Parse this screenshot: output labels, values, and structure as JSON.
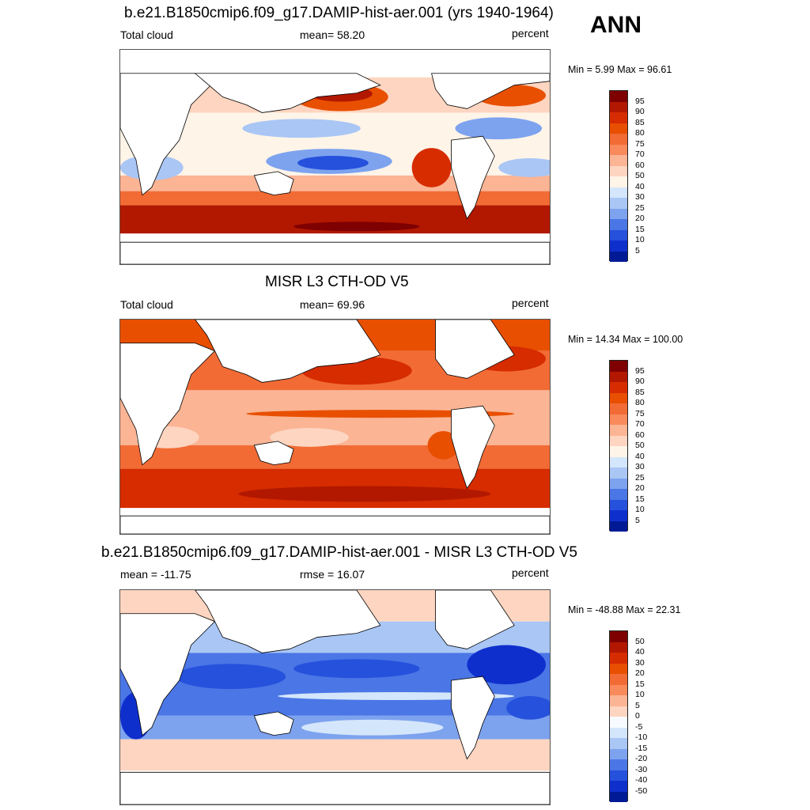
{
  "season": "ANN",
  "panels": [
    {
      "title": "b.e21.B1850cmip6.f09_g17.DAMIP-hist-aer.001 (yrs 1940-1964)",
      "left_label": "Total cloud",
      "center_label": "mean=  58.20",
      "right_label": "percent",
      "minmax": "Min =   5.99 Max =  96.61",
      "colorbar_labels": [
        "95",
        "90",
        "85",
        "80",
        "75",
        "70",
        "60",
        "50",
        "40",
        "30",
        "25",
        "20",
        "15",
        "10",
        "5"
      ],
      "colorbar_colors": [
        "#7f0000",
        "#b21800",
        "#d62c00",
        "#e84f00",
        "#f26b35",
        "#f88a5c",
        "#fbb494",
        "#fdd5c0",
        "#fff4e8",
        "#d4e6fb",
        "#a9c6f5",
        "#7da3ef",
        "#4a76e6",
        "#2551dc",
        "#0f2fcd",
        "#001a96"
      ]
    },
    {
      "title": "MISR L3 CTH-OD V5",
      "left_label": "Total cloud",
      "center_label": "mean=  69.96",
      "right_label": "percent",
      "minmax": "Min =  14.34 Max = 100.00",
      "colorbar_labels": [
        "95",
        "90",
        "85",
        "80",
        "75",
        "70",
        "60",
        "50",
        "40",
        "30",
        "25",
        "20",
        "15",
        "10",
        "5"
      ],
      "colorbar_colors": [
        "#7f0000",
        "#b21800",
        "#d62c00",
        "#e84f00",
        "#f26b35",
        "#f88a5c",
        "#fbb494",
        "#fdd5c0",
        "#fff4e8",
        "#d4e6fb",
        "#a9c6f5",
        "#7da3ef",
        "#4a76e6",
        "#2551dc",
        "#0f2fcd",
        "#001a96"
      ]
    },
    {
      "title": "b.e21.B1850cmip6.f09_g17.DAMIP-hist-aer.001 - MISR L3 CTH-OD V5",
      "left_label": "mean = -11.75",
      "center_label": "rmse =  16.07",
      "right_label": "percent",
      "minmax": "Min = -48.88 Max =  22.31",
      "colorbar_labels": [
        "50",
        "40",
        "30",
        "20",
        "15",
        "10",
        "5",
        "0",
        "-5",
        "-10",
        "-15",
        "-20",
        "-30",
        "-40",
        "-50"
      ],
      "colorbar_colors": [
        "#7f0000",
        "#b21800",
        "#d62c00",
        "#e84f00",
        "#f26b35",
        "#f88a5c",
        "#fbb494",
        "#fdd5c0",
        "#f7fbff",
        "#d4e6fb",
        "#a9c6f5",
        "#7da3ef",
        "#4a76e6",
        "#2551dc",
        "#0f2fcd",
        "#001a96"
      ]
    }
  ]
}
